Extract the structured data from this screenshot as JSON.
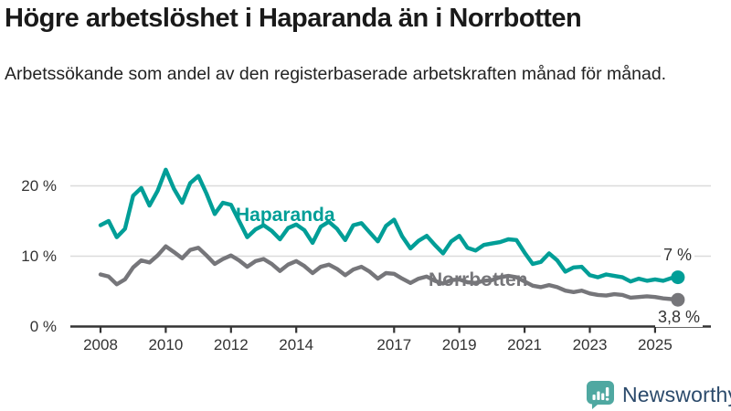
{
  "header": {
    "title": "Högre arbetslöshet i Haparanda än i Norrbotten",
    "subtitle": "Arbetssökande som andel av den registerbaserade arbetskraften månad för månad."
  },
  "chart_data": {
    "type": "line",
    "title": "Högre arbetslöshet i Haparanda än i Norrbotten",
    "y_unit": "%",
    "ylim": [
      0,
      23
    ],
    "xlim": [
      2007.8,
      2026.3
    ],
    "grid": "horizontal-only",
    "legend_position": "inline-labels-on-lines",
    "colors": {
      "haparanda": "#009E97",
      "norrbotten": "#76767A",
      "gridline": "#DBDBDB",
      "axis": "#333333",
      "background": "#FFFFFF"
    },
    "y_ticks": [
      {
        "value": 0,
        "label": "0 %"
      },
      {
        "value": 10,
        "label": "10 %"
      },
      {
        "value": 20,
        "label": "20 %"
      }
    ],
    "x_ticks": [
      {
        "year": 2008,
        "label": "2008"
      },
      {
        "year": 2010,
        "label": "2010"
      },
      {
        "year": 2012,
        "label": "2012"
      },
      {
        "year": 2014,
        "label": "2014"
      },
      {
        "year": 2017,
        "label": "2017"
      },
      {
        "year": 2019,
        "label": "2019"
      },
      {
        "year": 2021,
        "label": "2021"
      },
      {
        "year": 2023,
        "label": "2023"
      },
      {
        "year": 2025,
        "label": "2025"
      }
    ],
    "series": [
      {
        "name": "Haparanda",
        "color": "#009E97",
        "end_label": "7 %",
        "end_value": 7.0,
        "points": [
          [
            2008.0,
            14.4
          ],
          [
            2008.25,
            15.0
          ],
          [
            2008.5,
            12.7
          ],
          [
            2008.75,
            13.9
          ],
          [
            2009.0,
            18.6
          ],
          [
            2009.25,
            19.7
          ],
          [
            2009.5,
            17.2
          ],
          [
            2009.75,
            19.3
          ],
          [
            2010.0,
            22.3
          ],
          [
            2010.25,
            19.6
          ],
          [
            2010.5,
            17.6
          ],
          [
            2010.75,
            20.4
          ],
          [
            2011.0,
            21.4
          ],
          [
            2011.25,
            18.9
          ],
          [
            2011.5,
            16.0
          ],
          [
            2011.75,
            17.6
          ],
          [
            2012.0,
            17.3
          ],
          [
            2012.25,
            15.0
          ],
          [
            2012.5,
            12.7
          ],
          [
            2012.75,
            13.8
          ],
          [
            2013.0,
            14.4
          ],
          [
            2013.25,
            13.6
          ],
          [
            2013.5,
            12.4
          ],
          [
            2013.75,
            14.0
          ],
          [
            2014.0,
            14.5
          ],
          [
            2014.25,
            13.7
          ],
          [
            2014.5,
            11.9
          ],
          [
            2014.75,
            14.2
          ],
          [
            2015.0,
            14.9
          ],
          [
            2015.25,
            13.9
          ],
          [
            2015.5,
            12.3
          ],
          [
            2015.75,
            14.4
          ],
          [
            2016.0,
            14.7
          ],
          [
            2016.25,
            13.4
          ],
          [
            2016.5,
            12.1
          ],
          [
            2016.75,
            14.3
          ],
          [
            2017.0,
            15.2
          ],
          [
            2017.25,
            12.8
          ],
          [
            2017.5,
            11.1
          ],
          [
            2017.75,
            12.2
          ],
          [
            2018.0,
            12.9
          ],
          [
            2018.25,
            11.6
          ],
          [
            2018.5,
            10.4
          ],
          [
            2018.75,
            12.1
          ],
          [
            2019.0,
            12.9
          ],
          [
            2019.25,
            11.2
          ],
          [
            2019.5,
            10.8
          ],
          [
            2019.75,
            11.6
          ],
          [
            2020.0,
            11.8
          ],
          [
            2020.25,
            12.0
          ],
          [
            2020.5,
            12.4
          ],
          [
            2020.75,
            12.3
          ],
          [
            2021.0,
            10.5
          ],
          [
            2021.25,
            8.9
          ],
          [
            2021.5,
            9.2
          ],
          [
            2021.75,
            10.4
          ],
          [
            2022.0,
            9.4
          ],
          [
            2022.25,
            7.8
          ],
          [
            2022.5,
            8.4
          ],
          [
            2022.75,
            8.5
          ],
          [
            2023.0,
            7.3
          ],
          [
            2023.25,
            7.0
          ],
          [
            2023.5,
            7.4
          ],
          [
            2023.75,
            7.2
          ],
          [
            2024.0,
            7.0
          ],
          [
            2024.25,
            6.4
          ],
          [
            2024.5,
            6.8
          ],
          [
            2024.75,
            6.5
          ],
          [
            2025.0,
            6.7
          ],
          [
            2025.25,
            6.5
          ],
          [
            2025.5,
            6.9
          ],
          [
            2025.7,
            7.0
          ]
        ]
      },
      {
        "name": "Norrbotten",
        "color": "#76767A",
        "end_label": "3,8 %",
        "end_value": 3.8,
        "points": [
          [
            2008.0,
            7.4
          ],
          [
            2008.25,
            7.1
          ],
          [
            2008.5,
            6.0
          ],
          [
            2008.75,
            6.7
          ],
          [
            2009.0,
            8.4
          ],
          [
            2009.25,
            9.4
          ],
          [
            2009.5,
            9.1
          ],
          [
            2009.75,
            10.1
          ],
          [
            2010.0,
            11.4
          ],
          [
            2010.25,
            10.6
          ],
          [
            2010.5,
            9.7
          ],
          [
            2010.75,
            10.9
          ],
          [
            2011.0,
            11.2
          ],
          [
            2011.25,
            10.1
          ],
          [
            2011.5,
            8.9
          ],
          [
            2011.75,
            9.6
          ],
          [
            2012.0,
            10.1
          ],
          [
            2012.25,
            9.4
          ],
          [
            2012.5,
            8.5
          ],
          [
            2012.75,
            9.3
          ],
          [
            2013.0,
            9.6
          ],
          [
            2013.25,
            8.9
          ],
          [
            2013.5,
            7.9
          ],
          [
            2013.75,
            8.8
          ],
          [
            2014.0,
            9.3
          ],
          [
            2014.25,
            8.6
          ],
          [
            2014.5,
            7.6
          ],
          [
            2014.75,
            8.5
          ],
          [
            2015.0,
            8.8
          ],
          [
            2015.25,
            8.2
          ],
          [
            2015.5,
            7.3
          ],
          [
            2015.75,
            8.1
          ],
          [
            2016.0,
            8.5
          ],
          [
            2016.25,
            7.8
          ],
          [
            2016.5,
            6.8
          ],
          [
            2016.75,
            7.6
          ],
          [
            2017.0,
            7.5
          ],
          [
            2017.25,
            6.8
          ],
          [
            2017.5,
            6.2
          ],
          [
            2017.75,
            6.8
          ],
          [
            2018.0,
            7.1
          ],
          [
            2018.25,
            6.5
          ],
          [
            2018.5,
            6.1
          ],
          [
            2018.75,
            6.6
          ],
          [
            2019.0,
            6.7
          ],
          [
            2019.25,
            6.3
          ],
          [
            2019.5,
            6.2
          ],
          [
            2019.75,
            6.5
          ],
          [
            2020.0,
            6.6
          ],
          [
            2020.25,
            7.0
          ],
          [
            2020.5,
            7.2
          ],
          [
            2020.75,
            7.0
          ],
          [
            2021.0,
            6.4
          ],
          [
            2021.25,
            5.8
          ],
          [
            2021.5,
            5.6
          ],
          [
            2021.75,
            5.9
          ],
          [
            2022.0,
            5.6
          ],
          [
            2022.25,
            5.1
          ],
          [
            2022.5,
            4.9
          ],
          [
            2022.75,
            5.1
          ],
          [
            2023.0,
            4.7
          ],
          [
            2023.25,
            4.5
          ],
          [
            2023.5,
            4.4
          ],
          [
            2023.75,
            4.6
          ],
          [
            2024.0,
            4.5
          ],
          [
            2024.25,
            4.1
          ],
          [
            2024.5,
            4.2
          ],
          [
            2024.75,
            4.3
          ],
          [
            2025.0,
            4.2
          ],
          [
            2025.25,
            4.0
          ],
          [
            2025.5,
            3.9
          ],
          [
            2025.7,
            3.8
          ]
        ]
      }
    ]
  },
  "footer": {
    "brand": "Newsworthy",
    "icon": "newsworthy-chart-bubble-icon",
    "icon_color": "#4FA8A1",
    "text_color": "#2B4A6B"
  }
}
